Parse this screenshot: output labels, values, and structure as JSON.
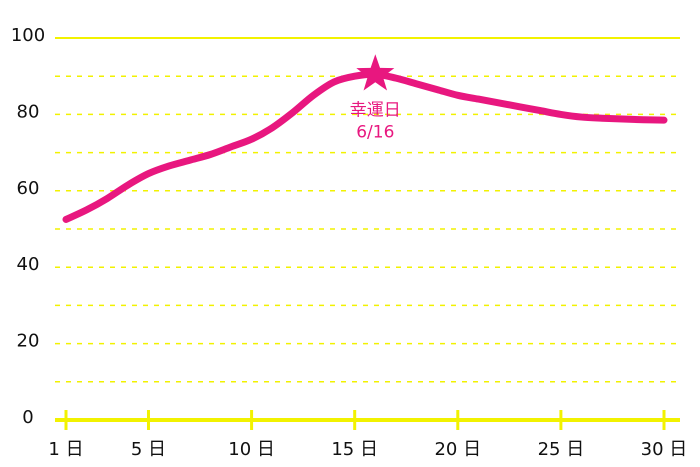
{
  "chart_data": {
    "type": "line",
    "x": [
      1,
      2,
      3,
      4,
      5,
      6,
      7,
      8,
      9,
      10,
      11,
      12,
      13,
      14,
      15,
      16,
      17,
      18,
      19,
      20,
      21,
      22,
      23,
      24,
      25,
      26,
      27,
      28,
      29,
      30
    ],
    "series": [
      {
        "color": "#e8177f",
        "values": [
          52.5,
          55,
          58,
          61.5,
          64.5,
          66.5,
          68,
          69.5,
          71.5,
          73.5,
          76.5,
          80.5,
          85,
          88.5,
          90,
          90.5,
          89.5,
          88,
          86.5,
          85,
          84,
          83,
          82,
          81,
          80,
          79.3,
          79,
          78.8,
          78.6,
          78.5
        ]
      }
    ],
    "xlim": [
      1,
      30
    ],
    "xticks": [
      {
        "value": 1,
        "label": "1 日"
      },
      {
        "value": 5,
        "label": "5 日"
      },
      {
        "value": 10,
        "label": "10 日"
      },
      {
        "value": 15,
        "label": "15 日"
      },
      {
        "value": 20,
        "label": "20 日"
      },
      {
        "value": 25,
        "label": "25 日"
      },
      {
        "value": 30,
        "label": "30 日"
      }
    ],
    "ylim": [
      0,
      100
    ],
    "yticks": [
      0,
      20,
      40,
      60,
      80,
      100
    ],
    "minor_yticks": [
      10,
      30,
      50,
      70,
      90
    ],
    "grid": true,
    "grid_color": "#f2f200",
    "annotation": {
      "x": 16,
      "text": "幸運日",
      "date": "6/16",
      "color": "#e8177f"
    }
  }
}
